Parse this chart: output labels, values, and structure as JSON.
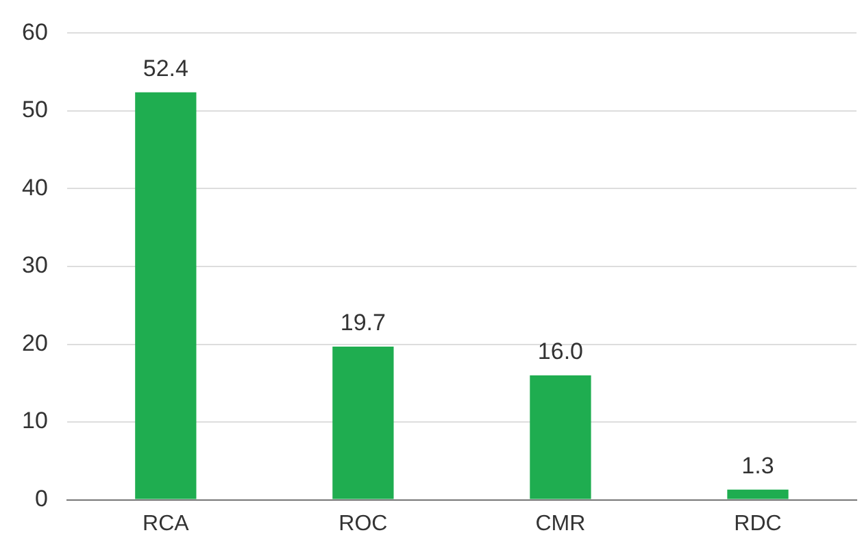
{
  "chart_data": {
    "type": "bar",
    "categories": [
      "RCA",
      "ROC",
      "CMR",
      "RDC"
    ],
    "values": [
      52.4,
      19.7,
      16.0,
      1.3
    ],
    "value_labels": [
      "52.4",
      "19.7",
      "16.0",
      "1.3"
    ],
    "color": "#1fad50",
    "ylim": [
      0,
      60
    ],
    "yticks": [
      0,
      10,
      20,
      30,
      40,
      50,
      60
    ],
    "grid": "y"
  }
}
